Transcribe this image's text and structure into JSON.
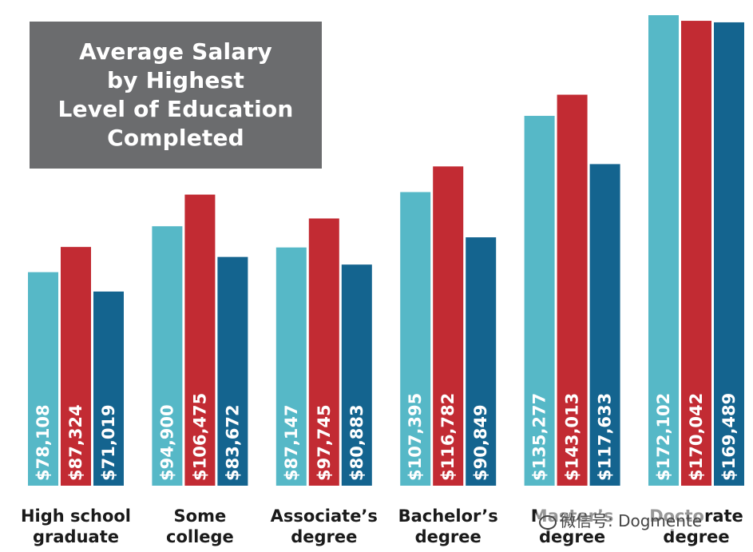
{
  "chart_data": {
    "type": "bar",
    "title": "Average Salary\nby Highest\nLevel of Education\nCompleted",
    "categories": [
      "High school\ngraduate",
      "Some\ncollege",
      "Associate’s\ndegree",
      "Bachelor’s\ndegree",
      "Master’s\ndegree",
      "Doctorate\ndegree"
    ],
    "series": [
      {
        "color": "#56b8c7",
        "values": [
          78108,
          94900,
          87147,
          107395,
          135277,
          172102
        ]
      },
      {
        "color": "#c22b33",
        "values": [
          87324,
          106475,
          97745,
          116782,
          143013,
          170042
        ]
      },
      {
        "color": "#14648f",
        "values": [
          71019,
          83672,
          80883,
          90849,
          117633,
          169489
        ]
      }
    ],
    "value_labels": [
      [
        "$78,108",
        "$94,900",
        "$87,147",
        "$107,395",
        "$135,277",
        "$172,102"
      ],
      [
        "$87,324",
        "$106,475",
        "$97,745",
        "$116,782",
        "$143,013",
        "$170,042"
      ],
      [
        "$71,019",
        "$83,672",
        "$80,883",
        "$90,849",
        "$117,633",
        "$169,489"
      ]
    ],
    "ylim": [
      0,
      172102
    ],
    "grid": false,
    "legend": "none"
  },
  "watermark": "微信号: Dogmente",
  "watermark_icon": "wechat-icon"
}
